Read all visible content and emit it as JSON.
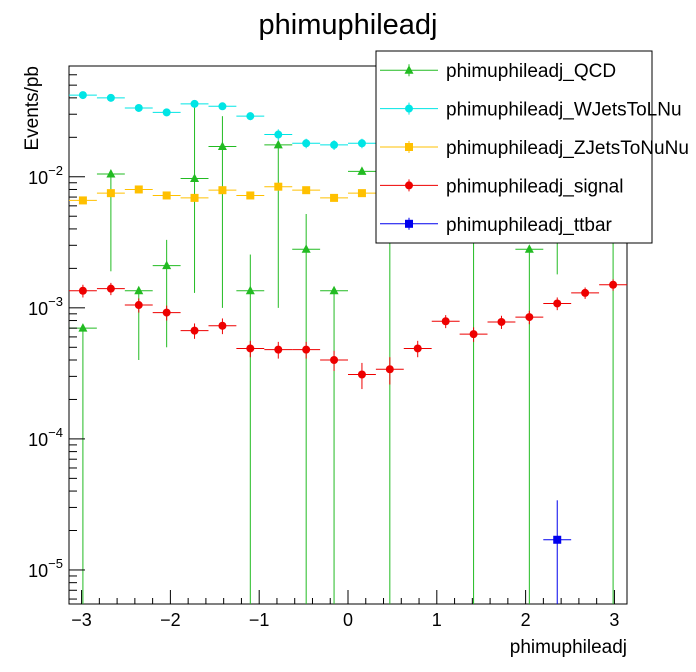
{
  "chart_data": {
    "type": "scatter",
    "title": "phimuphileadj",
    "xlabel": "phimuphileadj",
    "ylabel": "Events/pb",
    "xlim": [
      -3.1416,
      3.1416
    ],
    "ylim": [
      5.5e-06,
      0.07
    ],
    "yscale": "log",
    "grid": false,
    "legend_position": "top-right",
    "x_ticks": [
      {
        "v": -3,
        "label": "−3"
      },
      {
        "v": -2,
        "label": "−2"
      },
      {
        "v": -1,
        "label": "−1"
      },
      {
        "v": 0,
        "label": "0"
      },
      {
        "v": 1,
        "label": "1"
      },
      {
        "v": 2,
        "label": "2"
      },
      {
        "v": 3,
        "label": "3"
      }
    ],
    "y_ticks": [
      {
        "v": 1e-05,
        "base": "10",
        "exp": "−5"
      },
      {
        "v": 0.0001,
        "base": "10",
        "exp": "−4"
      },
      {
        "v": 0.001,
        "base": "10",
        "exp": "−3"
      },
      {
        "v": 0.01,
        "base": "10",
        "exp": "−2"
      }
    ],
    "x": [
      -2.985,
      -2.67,
      -2.356,
      -2.042,
      -1.728,
      -1.414,
      -1.1,
      -0.785,
      -0.471,
      -0.157,
      0.157,
      0.471,
      0.785,
      1.1,
      1.414,
      1.728,
      2.042,
      2.356,
      2.67,
      2.985
    ],
    "x_halfwidth": 0.157,
    "series": [
      {
        "name": "phimuphileadj_QCD",
        "color": "#22bb22",
        "marker": "triangle",
        "y": [
          0.0007,
          0.0105,
          0.00135,
          0.0021,
          0.0097,
          0.017,
          0.00135,
          0.0175,
          0.0028,
          0.00135,
          0.011,
          0,
          null,
          null,
          0,
          null,
          0.0028,
          0.011,
          null,
          0
        ],
        "err_lo": [
          0.0007,
          0.0086,
          0.00095,
          0.0016,
          0.0084,
          0.016,
          0.00135,
          0.0165,
          0.0028,
          0.00135,
          0.0,
          0,
          null,
          null,
          0,
          null,
          0.0028,
          0.0092,
          null,
          0
        ],
        "err_hi": [
          0.0,
          0.0,
          0.0,
          0.0012,
          0.027,
          0.012,
          0.0012,
          0.001,
          0.0024,
          0.0,
          0.0,
          0.0,
          null,
          null,
          0.0,
          null,
          0.0,
          0.0,
          null,
          0.0
        ]
      },
      {
        "name": "phimuphileadj_WJetsToLNu",
        "color": "#00e5e5",
        "marker": "circle",
        "y": [
          0.042,
          0.04,
          0.0335,
          0.031,
          0.036,
          0.0345,
          0.029,
          0.021,
          0.018,
          0.0175,
          0.018,
          null,
          null,
          null,
          null,
          null,
          null,
          null,
          null,
          null
        ],
        "err_lo": [
          0.002,
          0.002,
          0.002,
          0.002,
          0.002,
          0.002,
          0.002,
          0.002,
          0.0015,
          0.0015,
          0.0015,
          null,
          null,
          null,
          null,
          null,
          null,
          null,
          null,
          null
        ],
        "err_hi": [
          0.002,
          0.002,
          0.002,
          0.002,
          0.002,
          0.002,
          0.002,
          0.002,
          0.0015,
          0.0015,
          0.0015,
          null,
          null,
          null,
          null,
          null,
          null,
          null,
          null,
          null
        ]
      },
      {
        "name": "phimuphileadj_ZJetsToNuNu",
        "color": "#ffc000",
        "marker": "square",
        "y": [
          0.0066,
          0.0075,
          0.008,
          0.0072,
          0.0069,
          0.0079,
          0.0072,
          0.0084,
          0.0079,
          0.0069,
          0.0075,
          null,
          null,
          null,
          null,
          null,
          null,
          null,
          null,
          null
        ],
        "err_lo": [
          0.0004,
          0.0004,
          0.0004,
          0.0004,
          0.0004,
          0.0004,
          0.0004,
          0.0004,
          0.0004,
          0.0004,
          0.0004,
          null,
          null,
          null,
          null,
          null,
          null,
          null,
          null,
          null
        ],
        "err_hi": [
          0.0004,
          0.0004,
          0.0004,
          0.0004,
          0.0004,
          0.0004,
          0.0004,
          0.0004,
          0.0004,
          0.0004,
          0.0004,
          null,
          null,
          null,
          null,
          null,
          null,
          null,
          null,
          null
        ]
      },
      {
        "name": "phimuphileadj_signal",
        "color": "#ee0000",
        "marker": "circle",
        "y": [
          0.00135,
          0.0014,
          0.00105,
          0.00092,
          0.00067,
          0.00073,
          0.00049,
          0.00048,
          0.00048,
          0.0004,
          0.00031,
          0.00034,
          0.00049,
          0.00079,
          0.00063,
          0.00078,
          0.00085,
          0.00108,
          0.0013,
          0.0015
        ],
        "err_lo": [
          0.00015,
          0.00015,
          0.00013,
          0.00012,
          9e-05,
          0.0001,
          7e-05,
          7e-05,
          7e-05,
          7e-05,
          7e-05,
          8e-05,
          7e-05,
          9e-05,
          8e-05,
          9e-05,
          0.0001,
          0.00012,
          0.00013,
          0.00015
        ],
        "err_hi": [
          0.00015,
          0.00015,
          0.00013,
          0.00012,
          9e-05,
          0.0001,
          7e-05,
          7e-05,
          7e-05,
          7e-05,
          7e-05,
          8e-05,
          7e-05,
          9e-05,
          8e-05,
          9e-05,
          0.0001,
          0.00012,
          0.00013,
          0.00015
        ]
      },
      {
        "name": "phimuphileadj_ttbar",
        "color": "#0000ee",
        "marker": "square",
        "y": [
          null,
          null,
          null,
          null,
          null,
          null,
          null,
          null,
          null,
          null,
          null,
          null,
          null,
          null,
          null,
          null,
          null,
          1.7e-05,
          null,
          null
        ],
        "err_lo": [
          null,
          null,
          null,
          null,
          null,
          null,
          null,
          null,
          null,
          null,
          null,
          null,
          null,
          null,
          null,
          null,
          null,
          1.7e-05,
          null,
          null
        ],
        "err_hi": [
          null,
          null,
          null,
          null,
          null,
          null,
          null,
          null,
          null,
          null,
          null,
          null,
          null,
          null,
          null,
          null,
          null,
          1.7e-05,
          null,
          null
        ]
      }
    ]
  }
}
